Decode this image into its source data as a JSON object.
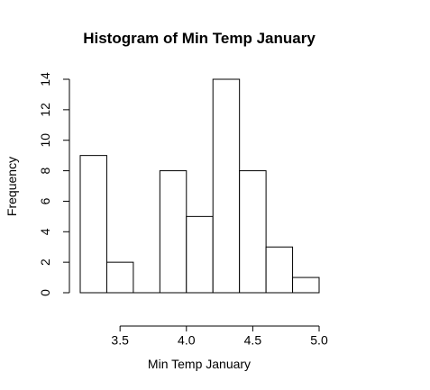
{
  "chart_data": {
    "type": "bar",
    "title": "Histogram of Min Temp January",
    "xlabel": "Min Temp January",
    "ylabel": "Frequency",
    "bins": [
      {
        "start": 3.2,
        "end": 3.4,
        "value": 9
      },
      {
        "start": 3.4,
        "end": 3.6,
        "value": 2
      },
      {
        "start": 3.6,
        "end": 3.8,
        "value": 0
      },
      {
        "start": 3.8,
        "end": 4.0,
        "value": 8
      },
      {
        "start": 4.0,
        "end": 4.2,
        "value": 5
      },
      {
        "start": 4.2,
        "end": 4.4,
        "value": 14
      },
      {
        "start": 4.4,
        "end": 4.6,
        "value": 8
      },
      {
        "start": 4.6,
        "end": 4.8,
        "value": 3
      },
      {
        "start": 4.8,
        "end": 5.0,
        "value": 1
      }
    ],
    "xticks": [
      3.5,
      4.0,
      4.5,
      5.0
    ],
    "xtick_labels": [
      "3.5",
      "4.0",
      "4.5",
      "5.0"
    ],
    "yticks": [
      0,
      2,
      4,
      6,
      8,
      10,
      12,
      14
    ],
    "ytick_labels": [
      "0",
      "2",
      "4",
      "6",
      "8",
      "10",
      "12",
      "14"
    ],
    "xlim": [
      3.2,
      5.0
    ],
    "ylim": [
      0,
      14
    ],
    "grid": false,
    "legend": "none"
  }
}
